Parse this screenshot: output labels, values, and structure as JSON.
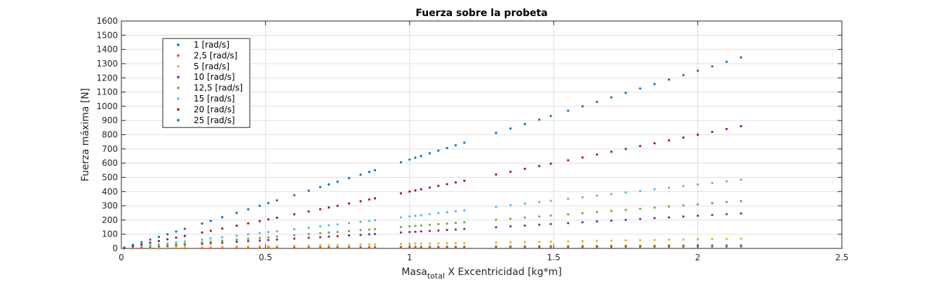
{
  "chart_data": {
    "type": "scatter",
    "title": "Fuerza sobre la probeta",
    "xlabel": {
      "main": "Masa",
      "subscript": "total",
      "rest": " X Excentricidad [kg*m]"
    },
    "ylabel": "Fuerza máxima [N]",
    "xlim": [
      0,
      2.5
    ],
    "ylim": [
      0,
      1600
    ],
    "xticks": [
      0,
      0.5,
      1,
      1.5,
      2,
      2.5
    ],
    "xtick_labels": [
      "0",
      "0.5",
      "1",
      "1.5",
      "2",
      "2.5"
    ],
    "yticks": [
      0,
      100,
      200,
      300,
      400,
      500,
      600,
      700,
      800,
      900,
      1000,
      1100,
      1200,
      1300,
      1400,
      1500,
      1600
    ],
    "ytick_labels": [
      "0",
      "100",
      "200",
      "300",
      "400",
      "500",
      "600",
      "700",
      "800",
      "900",
      "1000",
      "1100",
      "1200",
      "1300",
      "1400",
      "1500",
      "1600"
    ],
    "grid": true,
    "legend_position": "top-left",
    "x": [
      0.01,
      0.04,
      0.07,
      0.1,
      0.13,
      0.16,
      0.19,
      0.22,
      0.28,
      0.31,
      0.35,
      0.4,
      0.44,
      0.48,
      0.51,
      0.54,
      0.6,
      0.65,
      0.69,
      0.72,
      0.75,
      0.79,
      0.83,
      0.86,
      0.88,
      0.97,
      1.0,
      1.02,
      1.04,
      1.07,
      1.1,
      1.13,
      1.16,
      1.19,
      1.3,
      1.35,
      1.4,
      1.45,
      1.49,
      1.55,
      1.6,
      1.65,
      1.7,
      1.75,
      1.8,
      1.85,
      1.9,
      1.95,
      2.0,
      2.05,
      2.1,
      2.15
    ],
    "series": [
      {
        "name": "1 [rad/s]",
        "color": "#0072bd",
        "values": [
          0.1,
          0.4,
          0.7,
          1.0,
          1.3,
          1.6,
          1.9,
          2.2,
          2.8,
          3.0,
          3.4,
          3.9,
          4.3,
          4.7,
          5.0,
          5.3,
          5.9,
          6.4,
          6.8,
          7.1,
          7.4,
          7.8,
          8.1,
          8.4,
          8.6,
          9.5,
          9.8,
          10.0,
          10.2,
          10.5,
          10.8,
          11.1,
          11.4,
          11.7,
          12.7,
          13.2,
          13.7,
          14.2,
          14.6,
          15.2,
          15.7,
          16.2,
          16.7,
          17.2,
          17.6,
          18.1,
          18.6,
          19.1,
          19.6,
          20.1,
          20.6,
          21.1
        ]
      },
      {
        "name": "2,5 [rad/s]",
        "color": "#d95319",
        "values": [
          0.1,
          0.3,
          0.4,
          0.6,
          0.8,
          1.0,
          1.2,
          1.4,
          1.8,
          1.9,
          2.2,
          2.5,
          2.8,
          3.0,
          3.2,
          3.4,
          3.8,
          4.1,
          4.3,
          4.5,
          4.7,
          4.9,
          5.2,
          5.4,
          5.5,
          6.1,
          6.3,
          6.4,
          6.5,
          6.7,
          6.9,
          7.1,
          7.3,
          7.5,
          8.1,
          8.4,
          8.8,
          9.1,
          9.3,
          9.7,
          10.0,
          10.3,
          10.6,
          10.9,
          11.3,
          11.6,
          11.9,
          12.2,
          12.5,
          12.8,
          13.1,
          13.4
        ]
      },
      {
        "name": "5 [rad/s]",
        "color": "#edb120",
        "values": [
          1,
          2,
          2,
          3,
          4,
          5,
          6,
          7,
          9,
          10,
          11,
          13,
          14,
          15,
          16,
          17,
          19,
          21,
          22,
          23,
          24,
          25,
          27,
          28,
          28,
          31,
          32,
          33,
          33,
          34,
          35,
          36,
          37,
          38,
          42,
          43,
          45,
          46,
          48,
          50,
          51,
          53,
          54,
          56,
          58,
          59,
          61,
          62,
          64,
          66,
          67,
          69
        ]
      },
      {
        "name": "10 [rad/s]",
        "color": "#7e2f8e",
        "values": [
          1,
          5,
          8,
          12,
          15,
          19,
          22,
          26,
          32,
          36,
          40,
          46,
          51,
          55,
          59,
          62,
          69,
          75,
          79,
          83,
          86,
          91,
          95,
          99,
          101,
          112,
          115,
          117,
          120,
          123,
          126,
          130,
          133,
          137,
          149,
          155,
          161,
          167,
          171,
          178,
          184,
          190,
          195,
          201,
          207,
          213,
          218,
          224,
          230,
          235,
          241,
          247
        ]
      },
      {
        "name": "12,5 [rad/s]",
        "color": "#77ac30",
        "values": [
          2,
          6,
          11,
          16,
          20,
          25,
          29,
          34,
          43,
          48,
          54,
          62,
          68,
          74,
          79,
          84,
          93,
          101,
          107,
          112,
          116,
          122,
          129,
          133,
          136,
          150,
          155,
          158,
          161,
          166,
          171,
          175,
          180,
          184,
          202,
          209,
          217,
          225,
          231,
          240,
          248,
          256,
          264,
          271,
          279,
          287,
          295,
          302,
          310,
          318,
          326,
          333
        ]
      },
      {
        "name": "15 [rad/s]",
        "color": "#4dbeee",
        "values": [
          2,
          9,
          16,
          22,
          29,
          36,
          43,
          49,
          63,
          70,
          79,
          90,
          99,
          108,
          115,
          121,
          135,
          146,
          155,
          162,
          169,
          178,
          187,
          193,
          198,
          218,
          225,
          229,
          234,
          241,
          248,
          254,
          261,
          268,
          292,
          304,
          315,
          326,
          335,
          349,
          360,
          371,
          382,
          394,
          405,
          416,
          427,
          439,
          450,
          461,
          472,
          484
        ]
      },
      {
        "name": "20 [rad/s]",
        "color": "#a2142f",
        "values": [
          4,
          16,
          28,
          40,
          52,
          64,
          76,
          88,
          112,
          124,
          140,
          160,
          176,
          192,
          204,
          216,
          240,
          260,
          276,
          288,
          300,
          316,
          332,
          344,
          352,
          388,
          400,
          408,
          416,
          428,
          440,
          452,
          464,
          476,
          520,
          540,
          560,
          580,
          596,
          620,
          640,
          660,
          680,
          700,
          720,
          740,
          760,
          780,
          800,
          820,
          840,
          860
        ]
      },
      {
        "name": "25 [rad/s]",
        "color": "#0072bd",
        "values": [
          6,
          25,
          44,
          62,
          81,
          100,
          119,
          138,
          175,
          194,
          219,
          250,
          275,
          300,
          319,
          338,
          375,
          406,
          431,
          450,
          469,
          494,
          519,
          538,
          550,
          606,
          625,
          638,
          650,
          669,
          688,
          706,
          725,
          744,
          813,
          844,
          875,
          906,
          931,
          969,
          1000,
          1031,
          1063,
          1094,
          1125,
          1156,
          1188,
          1219,
          1250,
          1281,
          1313,
          1344
        ]
      }
    ]
  }
}
